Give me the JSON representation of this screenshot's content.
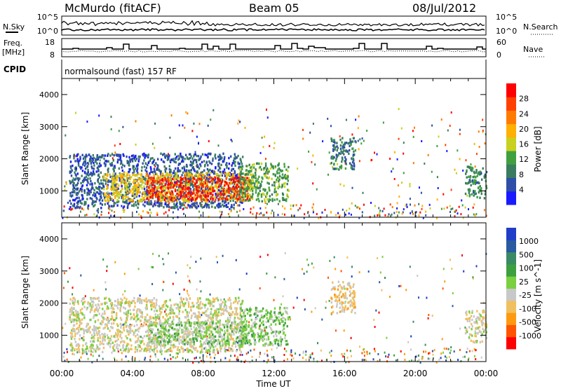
{
  "header": {
    "station": "McMurdo (fitACF)",
    "beam": "Beam 05",
    "date": "08/Jul/2012"
  },
  "noise_panel": {
    "left_label": "N.Sky",
    "right_label": "N.Search",
    "left_ticks": [
      "10^5",
      "10^0"
    ],
    "right_ticks": [
      "10^5",
      "10^0"
    ]
  },
  "freq_panel": {
    "left_label_line1": "Freq.",
    "left_label_line2": "[MHz]",
    "left_ticks": [
      "18",
      "8"
    ],
    "right_label": "Nave",
    "right_ticks": [
      "60",
      "0"
    ]
  },
  "cpid": {
    "label": "CPID",
    "program": "normalsound (fast) 157 RF"
  },
  "x_axis": {
    "title": "Time UT",
    "ticks": [
      "00:00",
      "04:00",
      "08:00",
      "12:00",
      "16:00",
      "20:00",
      "00:00"
    ]
  },
  "colors": {
    "power_scale": [
      "#1a1aff",
      "#2e4ea8",
      "#3a7d5e",
      "#40a040",
      "#c8d020",
      "#ffb000",
      "#ff7a00",
      "#ff4000",
      "#ff0000"
    ],
    "velocity_scale": [
      "#ff0000",
      "#ff5500",
      "#ff9a10",
      "#f0c060",
      "#c8c8c8",
      "#7ad040",
      "#3da040",
      "#3a8a66",
      "#2a5aa0",
      "#1f3ec8"
    ]
  },
  "chart_data": [
    {
      "type": "heatmap",
      "title": "",
      "xlabel": "Time UT",
      "ylabel": "Slant Range [km]",
      "xlim": [
        0,
        24
      ],
      "ylim": [
        180,
        4500
      ],
      "yticks": [
        "4000",
        "3000",
        "2000",
        "1000"
      ],
      "colorbar": {
        "label": "Power [dB]",
        "ticks": [
          "28",
          "24",
          "20",
          "16",
          "12",
          "8",
          "4"
        ],
        "range": [
          0,
          32
        ]
      },
      "regions": [
        {
          "t0": 0.4,
          "t1": 10.2,
          "r0": 500,
          "r1": 2200,
          "value": 6
        },
        {
          "t0": 2.3,
          "t1": 10.8,
          "r0": 700,
          "r1": 1600,
          "value": 18
        },
        {
          "t0": 4.8,
          "t1": 10.6,
          "r0": 750,
          "r1": 1450,
          "value": 29
        },
        {
          "t0": 10.0,
          "t1": 12.8,
          "r0": 700,
          "r1": 1900,
          "value": 12
        },
        {
          "t0": 15.2,
          "t1": 16.6,
          "r0": 1700,
          "r1": 2700,
          "value": 8
        },
        {
          "t0": 22.8,
          "t1": 24.0,
          "r0": 800,
          "r1": 1800,
          "value": 10
        }
      ]
    },
    {
      "type": "heatmap",
      "title": "",
      "xlabel": "Time UT",
      "ylabel": "Slant Range [km]",
      "xlim": [
        0,
        24
      ],
      "ylim": [
        180,
        4500
      ],
      "yticks": [
        "4000",
        "3000",
        "2000",
        "1000"
      ],
      "colorbar": {
        "label": "Velocity [m s^-1]",
        "ticks": [
          "1000",
          "500",
          "100",
          "25",
          "-25",
          "-100",
          "-500",
          "-1000"
        ],
        "range": [
          -1250,
          1250
        ]
      },
      "regions": [
        {
          "t0": 0.4,
          "t1": 10.2,
          "r0": 500,
          "r1": 2200,
          "value": -150
        },
        {
          "t0": 4.8,
          "t1": 10.6,
          "r0": 750,
          "r1": 1450,
          "value": 80
        },
        {
          "t0": 10.0,
          "t1": 12.8,
          "r0": 700,
          "r1": 1900,
          "value": 150
        },
        {
          "t0": 15.2,
          "t1": 16.6,
          "r0": 1700,
          "r1": 2700,
          "value": -300
        },
        {
          "t0": 22.8,
          "t1": 24.0,
          "r0": 800,
          "r1": 1800,
          "value": -200
        }
      ]
    }
  ]
}
